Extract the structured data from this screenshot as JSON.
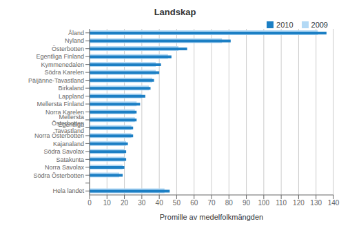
{
  "chart_data": {
    "type": "bar",
    "orientation": "horizontal",
    "title": "Landskap",
    "xlabel": "Promille av medelfolkmängden",
    "categories": [
      "Åland",
      "Nyland",
      "Österbotten",
      "Egentliga Finland",
      "Kymmenedalen",
      "Södra Karelen",
      "Päijänne-Tavastland",
      "Birkaland",
      "Lappland",
      "Mellersta Finland",
      "Norra Karelen",
      "Mellersta Österbotten",
      "Egentliga Tavastland",
      "Norra Österbotten",
      "Kajanaland",
      "Södra Savolax",
      "Satakunta",
      "Norra Savolax",
      "Södra Österbotten",
      null,
      "Hela landet"
    ],
    "series": [
      {
        "name": "2010",
        "color": "#1c7fc4",
        "values": [
          136,
          81,
          56,
          47,
          41,
          40,
          37,
          35,
          32,
          29,
          27,
          27,
          25,
          25,
          22,
          21,
          21,
          20,
          19,
          0,
          46
        ]
      },
      {
        "name": "2009",
        "color": "#b3d9f5",
        "values": [
          131,
          76,
          51,
          45,
          38,
          38,
          36,
          34,
          30,
          27,
          26,
          26,
          24,
          24,
          21,
          20,
          20,
          19,
          17,
          0,
          43
        ]
      }
    ],
    "xlim": [
      0,
      140
    ],
    "xticks": [
      0,
      10,
      20,
      30,
      40,
      50,
      60,
      70,
      80,
      90,
      100,
      110,
      120,
      130,
      140
    ],
    "grid": true,
    "legend": "upper right"
  }
}
